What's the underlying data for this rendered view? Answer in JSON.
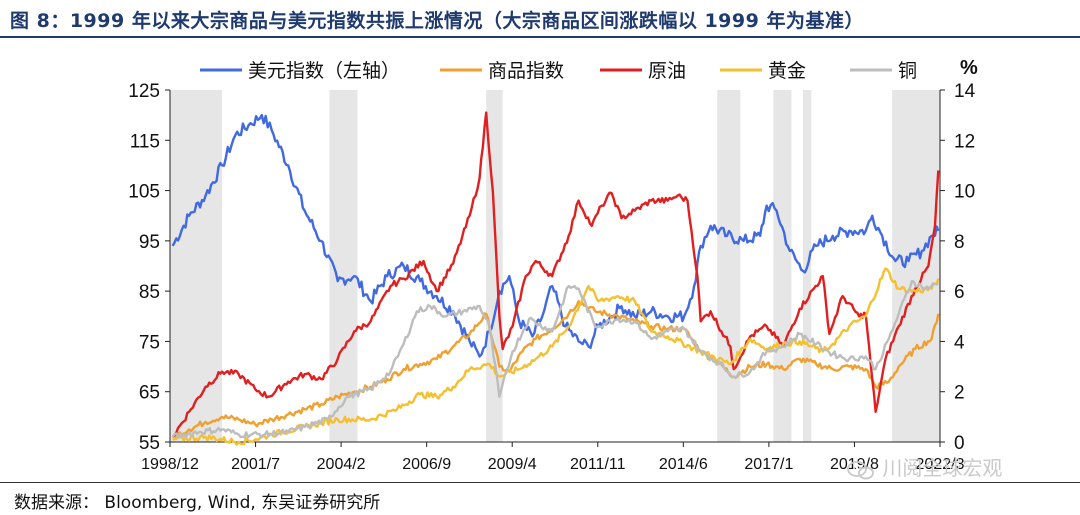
{
  "figure": {
    "title": "图 8：1999 年以来大宗商品与美元指数共振上涨情况（大宗商品区间涨跌幅以 1999 年为基准）",
    "source": "数据来源：  Bloomberg, Wind, 东吴证券研究所",
    "watermark": "川阅全球宏观"
  },
  "chart_data": {
    "type": "line",
    "title": "",
    "x_ticks": [
      "1998/12",
      "2001/7",
      "2004/2",
      "2006/9",
      "2009/4",
      "2011/11",
      "2014/6",
      "2017/1",
      "2019/8",
      "2022/3"
    ],
    "x_range": [
      1998.92,
      2022.25
    ],
    "y_left": {
      "label": "",
      "ticks": [
        55,
        65,
        75,
        85,
        95,
        105,
        115,
        125
      ],
      "range": [
        55,
        125
      ]
    },
    "y_right": {
      "label": "%",
      "ticks": [
        0,
        2,
        4,
        6,
        8,
        10,
        12,
        14
      ],
      "range": [
        0,
        14
      ]
    },
    "legend": [
      "美元指数（左轴）",
      "商品指数",
      "原油",
      "黄金",
      "铜"
    ],
    "legend_position": "top",
    "shaded_periods": [
      [
        1998.92,
        2000.5
      ],
      [
        2003.75,
        2004.6
      ],
      [
        2008.5,
        2009.0
      ],
      [
        2015.5,
        2016.2
      ],
      [
        2017.2,
        2017.75
      ],
      [
        2018.1,
        2018.35
      ],
      [
        2020.8,
        2022.25
      ]
    ],
    "series": [
      {
        "name": "美元指数（左轴）",
        "axis": "left",
        "color": "#4169e1",
        "x": [
          1999.0,
          1999.5,
          2000.0,
          2000.5,
          2000.9,
          2001.3,
          2001.7,
          2002.0,
          2002.5,
          2003.0,
          2003.5,
          2004.0,
          2004.5,
          2005.0,
          2005.5,
          2006.0,
          2006.5,
          2007.0,
          2007.5,
          2008.0,
          2008.3,
          2008.6,
          2008.9,
          2009.2,
          2009.5,
          2009.9,
          2010.2,
          2010.5,
          2010.9,
          2011.3,
          2011.6,
          2011.9,
          2012.3,
          2012.6,
          2013.0,
          2013.5,
          2014.0,
          2014.5,
          2014.8,
          2015.0,
          2015.3,
          2015.8,
          2016.3,
          2016.8,
          2017.0,
          2017.3,
          2017.7,
          2018.1,
          2018.5,
          2019.0,
          2019.5,
          2020.0,
          2020.2,
          2020.5,
          2020.9,
          2021.3,
          2021.7,
          2022.0,
          2022.2
        ],
        "y": [
          94,
          100,
          104,
          110,
          116,
          118,
          120,
          117,
          110,
          101,
          95,
          87,
          88,
          83,
          88,
          90,
          87,
          84,
          81,
          75,
          72,
          77,
          85,
          88,
          79,
          76,
          80,
          86,
          78,
          75,
          74,
          78,
          80,
          82,
          80,
          81,
          80,
          80,
          86,
          94,
          98,
          96,
          95,
          96,
          102,
          101,
          93,
          89,
          94,
          96,
          97,
          97,
          100,
          96,
          91,
          91,
          93,
          96,
          97
        ]
      },
      {
        "name": "商品指数",
        "axis": "right",
        "color": "#f0a030",
        "x": [
          1999.0,
          1999.5,
          2000.0,
          2000.5,
          2001.0,
          2001.5,
          2002.0,
          2002.5,
          2003.0,
          2003.5,
          2004.0,
          2004.5,
          2005.0,
          2005.5,
          2006.0,
          2006.5,
          2007.0,
          2007.5,
          2008.0,
          2008.5,
          2008.9,
          2009.2,
          2009.6,
          2010.0,
          2010.5,
          2011.0,
          2011.3,
          2011.8,
          2012.5,
          2013.0,
          2013.5,
          2014.0,
          2014.5,
          2015.0,
          2015.5,
          2016.0,
          2016.5,
          2017.0,
          2017.5,
          2018.0,
          2018.5,
          2019.0,
          2019.5,
          2020.0,
          2020.3,
          2020.7,
          2021.0,
          2021.5,
          2022.0,
          2022.2
        ],
        "y": [
          0.2,
          0.5,
          0.8,
          1.0,
          0.9,
          0.7,
          0.9,
          1.1,
          1.3,
          1.5,
          1.8,
          2.0,
          2.2,
          2.5,
          2.9,
          3.1,
          3.3,
          3.8,
          4.3,
          5.1,
          3.0,
          2.8,
          3.6,
          4.1,
          4.5,
          5.1,
          5.6,
          5.2,
          5.0,
          4.8,
          4.6,
          4.5,
          4.5,
          3.6,
          3.2,
          2.6,
          3.0,
          3.1,
          2.9,
          3.3,
          3.1,
          2.9,
          3.0,
          2.9,
          2.2,
          2.4,
          3.0,
          3.7,
          4.1,
          5.1
        ]
      },
      {
        "name": "原油",
        "axis": "right",
        "color": "#e02020",
        "x": [
          1999.0,
          1999.5,
          2000.0,
          2000.5,
          2001.0,
          2001.5,
          2001.9,
          2002.5,
          2003.0,
          2003.5,
          2004.0,
          2004.5,
          2005.0,
          2005.6,
          2006.0,
          2006.6,
          2007.0,
          2007.5,
          2008.0,
          2008.3,
          2008.5,
          2008.7,
          2008.9,
          2009.0,
          2009.3,
          2009.7,
          2010.0,
          2010.5,
          2011.0,
          2011.3,
          2011.7,
          2012.0,
          2012.3,
          2012.6,
          2013.0,
          2013.5,
          2014.0,
          2014.3,
          2014.6,
          2014.9,
          2015.0,
          2015.3,
          2015.9,
          2016.0,
          2016.5,
          2017.0,
          2017.5,
          2018.0,
          2018.7,
          2018.9,
          2019.3,
          2019.8,
          2020.0,
          2020.15,
          2020.3,
          2020.6,
          2021.0,
          2021.5,
          2021.9,
          2022.1,
          2022.2
        ],
        "y": [
          0.2,
          1.2,
          2.2,
          2.8,
          2.7,
          2.1,
          1.8,
          2.4,
          2.7,
          2.5,
          3.3,
          4.4,
          4.8,
          6.2,
          6.5,
          7.2,
          6.0,
          7.1,
          9.0,
          10.5,
          13.1,
          10.0,
          5.0,
          3.7,
          4.6,
          6.6,
          7.2,
          6.6,
          8.2,
          9.6,
          8.6,
          9.4,
          9.9,
          8.9,
          9.2,
          9.6,
          9.6,
          9.8,
          9.6,
          6.6,
          4.8,
          5.2,
          3.8,
          2.9,
          4.2,
          4.6,
          3.8,
          5.3,
          6.6,
          4.3,
          5.8,
          5.0,
          5.1,
          3.1,
          1.2,
          3.3,
          4.6,
          6.1,
          7.0,
          8.6,
          10.8
        ]
      },
      {
        "name": "黄金",
        "axis": "right",
        "color": "#f5c030",
        "x": [
          1999.0,
          2000.0,
          2001.0,
          2001.5,
          2002.0,
          2003.0,
          2004.0,
          2005.0,
          2005.8,
          2006.5,
          2007.0,
          2007.5,
          2008.0,
          2008.6,
          2008.9,
          2009.5,
          2010.0,
          2010.5,
          2011.0,
          2011.6,
          2011.9,
          2012.5,
          2013.0,
          2013.5,
          2014.0,
          2015.0,
          2015.9,
          2016.5,
          2017.0,
          2017.5,
          2018.0,
          2018.7,
          2019.0,
          2019.5,
          2020.0,
          2020.6,
          2021.0,
          2021.5,
          2022.0,
          2022.2
        ],
        "y": [
          0.1,
          0.2,
          0.0,
          0.1,
          0.3,
          0.6,
          0.9,
          0.9,
          1.3,
          1.9,
          1.8,
          2.2,
          2.9,
          3.1,
          2.6,
          2.9,
          3.3,
          3.8,
          4.6,
          6.2,
          5.6,
          5.8,
          5.6,
          4.4,
          4.2,
          3.6,
          3.1,
          4.1,
          3.7,
          3.9,
          4.0,
          3.6,
          3.9,
          4.6,
          5.0,
          6.9,
          6.1,
          6.0,
          6.1,
          6.5
        ]
      },
      {
        "name": "铜",
        "axis": "right",
        "color": "#bdbdbd",
        "x": [
          1999.0,
          1999.8,
          2000.5,
          2001.0,
          2001.8,
          2002.5,
          2003.0,
          2003.7,
          2004.3,
          2005.0,
          2005.6,
          2006.0,
          2006.4,
          2006.8,
          2007.3,
          2007.8,
          2008.3,
          2008.6,
          2008.9,
          2009.3,
          2009.8,
          2010.5,
          2011.0,
          2011.3,
          2011.8,
          2012.5,
          2013.0,
          2013.5,
          2014.0,
          2014.5,
          2015.0,
          2015.6,
          2016.0,
          2016.5,
          2017.0,
          2017.5,
          2018.0,
          2018.5,
          2019.0,
          2019.5,
          2020.0,
          2020.3,
          2020.7,
          2021.0,
          2021.4,
          2021.8,
          2022.2
        ],
        "y": [
          0.2,
          0.4,
          0.5,
          0.3,
          0.3,
          0.4,
          0.6,
          0.9,
          1.8,
          2.1,
          2.8,
          3.9,
          5.2,
          5.4,
          5.0,
          5.2,
          5.4,
          4.6,
          1.8,
          3.6,
          4.9,
          4.4,
          6.2,
          6.1,
          4.6,
          4.9,
          4.8,
          4.1,
          4.4,
          4.5,
          3.6,
          3.1,
          2.6,
          2.8,
          3.6,
          3.8,
          4.3,
          3.9,
          3.5,
          3.3,
          3.4,
          2.9,
          4.1,
          5.1,
          6.4,
          6.1,
          6.3
        ]
      }
    ]
  }
}
